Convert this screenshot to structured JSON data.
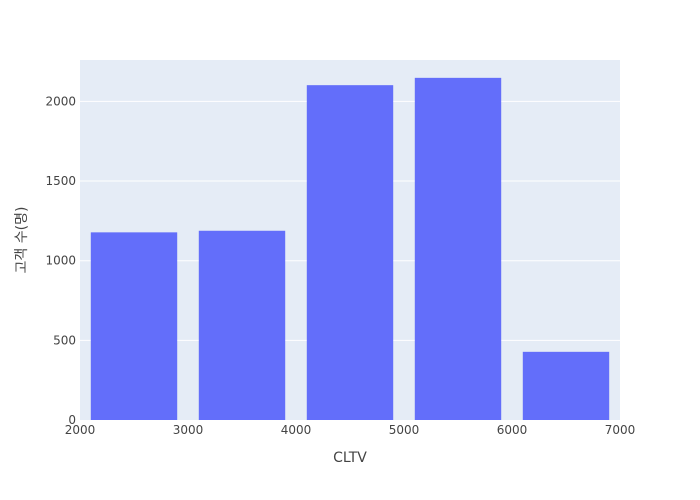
{
  "chart_data": {
    "type": "bar",
    "xlabel": "CLTV",
    "ylabel": "고객 수(명)",
    "xlim": [
      2000,
      7000
    ],
    "ylim": [
      0,
      2260
    ],
    "x_ticks": [
      "2000",
      "3000",
      "4000",
      "5000",
      "6000",
      "7000"
    ],
    "y_ticks": [
      "0",
      "500",
      "1000",
      "1500",
      "2000"
    ],
    "bins": [
      {
        "start": 2000,
        "end": 3000,
        "value": 1178
      },
      {
        "start": 3000,
        "end": 4000,
        "value": 1188
      },
      {
        "start": 4000,
        "end": 5000,
        "value": 2102
      },
      {
        "start": 5000,
        "end": 6000,
        "value": 2148
      },
      {
        "start": 6000,
        "end": 7000,
        "value": 428
      }
    ],
    "grid": true,
    "colors": {
      "bar": "#636EFA",
      "plot_background": "#E5ECF6",
      "grid": "#FFFFFF"
    }
  }
}
